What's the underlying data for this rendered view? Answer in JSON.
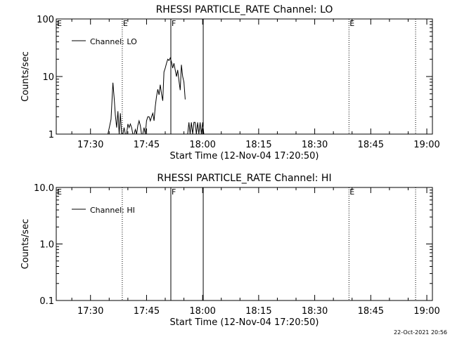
{
  "footer": {
    "timestamp": "22-Oct-2021 20:56"
  },
  "chart_data": [
    {
      "type": "line",
      "title": "RHESSI PARTICLE_RATE Channel: LO",
      "xlabel": "Start Time (12-Nov-04 17:20:50)",
      "ylabel": "Counts/sec",
      "y_scale": "log",
      "xlim": [
        "17:20:50",
        "19:01:30"
      ],
      "ylim": [
        1,
        100
      ],
      "x_ticks": [
        "17:30",
        "17:45",
        "18:00",
        "18:15",
        "18:30",
        "18:45",
        "19:00"
      ],
      "y_ticks": [
        {
          "label": "1",
          "value": 1
        },
        {
          "label": "10",
          "value": 10
        },
        {
          "label": "100",
          "value": 100
        }
      ],
      "legend": {
        "entries": [
          "Channel: LO"
        ],
        "position": "top-left"
      },
      "markers": [
        {
          "time": "17:38:30",
          "style": "dotted",
          "label": "E"
        },
        {
          "time": "17:51:30",
          "style": "solid",
          "label": "F"
        },
        {
          "time": "18:00:10",
          "style": "solid",
          "label": ""
        },
        {
          "time": "18:39:10",
          "style": "dotted",
          "label": "E"
        },
        {
          "time": "18:57:00",
          "style": "dotted",
          "label": ""
        }
      ],
      "edge_labels": [
        {
          "label": "E",
          "position": "top-left"
        }
      ],
      "series": [
        {
          "x": [
            "17:34:40",
            "17:35:30",
            "17:36:00",
            "17:36:20",
            "17:36:40",
            "17:37:00",
            "17:37:20",
            "17:37:40",
            "17:38:00",
            "17:38:20",
            "17:38:40",
            "17:39:00",
            "17:39:20",
            "17:39:40",
            "17:40:00",
            "17:40:20",
            "17:40:40",
            "17:41:00",
            "17:41:20",
            "17:41:40",
            "17:42:00",
            "17:42:20",
            "17:42:40",
            "17:43:00",
            "17:43:20",
            "17:43:40",
            "17:44:00",
            "17:44:20",
            "17:44:40",
            "17:45:00",
            "17:45:20",
            "17:45:40",
            "17:46:00",
            "17:46:20",
            "17:46:40",
            "17:47:00",
            "17:47:20",
            "17:47:40",
            "17:48:00",
            "17:48:20",
            "17:48:40",
            "17:49:00",
            "17:49:20",
            "17:49:40",
            "17:50:00",
            "17:50:20",
            "17:50:40",
            "17:51:00",
            "17:51:20",
            "17:51:40",
            "17:52:00",
            "17:52:20",
            "17:52:40",
            "17:53:00",
            "17:53:20",
            "17:53:40",
            "17:54:00",
            "17:54:20",
            "17:54:40",
            "17:55:00",
            "17:55:20"
          ],
          "y": [
            1,
            1.8,
            7.8,
            4.2,
            2.1,
            1.3,
            2.5,
            1,
            2.3,
            1,
            1,
            1.3,
            1,
            1,
            1.5,
            1.3,
            1.5,
            1.3,
            1,
            1,
            1.2,
            1,
            1.4,
            1.7,
            1.4,
            1,
            1,
            1.3,
            1,
            1.7,
            2,
            2,
            1.7,
            2,
            2.3,
            1.7,
            3,
            4.5,
            6,
            4.8,
            7.2,
            5,
            3.8,
            12,
            14,
            17,
            20,
            19,
            21,
            18,
            14,
            17,
            13,
            10,
            13,
            8.5,
            5.8,
            16,
            10,
            8,
            4
          ]
        },
        {
          "x": [
            "17:55:40",
            "17:56:00",
            "17:56:20",
            "17:56:40",
            "17:57:00",
            "17:57:20",
            "17:57:40",
            "17:58:00",
            "17:58:20",
            "17:58:40",
            "17:59:00",
            "17:59:20",
            "17:59:40",
            "18:00:00",
            "18:00:20",
            "18:00:40"
          ],
          "y": [
            1,
            1,
            1.6,
            1,
            1.6,
            1,
            1.6,
            1.6,
            1,
            1.6,
            1,
            1.6,
            1,
            1.6,
            1,
            1
          ]
        }
      ]
    },
    {
      "type": "line",
      "title": "RHESSI PARTICLE_RATE Channel: HI",
      "xlabel": "Start Time (12-Nov-04 17:20:50)",
      "ylabel": "Counts/sec",
      "y_scale": "log",
      "xlim": [
        "17:20:50",
        "19:01:30"
      ],
      "ylim": [
        0.1,
        10
      ],
      "x_ticks": [
        "17:30",
        "17:45",
        "18:00",
        "18:15",
        "18:30",
        "18:45",
        "19:00"
      ],
      "y_ticks": [
        {
          "label": "0.1",
          "value": 0.1
        },
        {
          "label": "1.0",
          "value": 1
        },
        {
          "label": "10.0",
          "value": 10
        }
      ],
      "legend": {
        "entries": [
          "Channel: HI"
        ],
        "position": "top-left"
      },
      "markers": [
        {
          "time": "17:38:30",
          "style": "dotted",
          "label": ""
        },
        {
          "time": "17:51:30",
          "style": "solid",
          "label": "F"
        },
        {
          "time": "18:00:10",
          "style": "solid",
          "label": ""
        },
        {
          "time": "18:39:10",
          "style": "dotted",
          "label": "E"
        },
        {
          "time": "18:57:00",
          "style": "dotted",
          "label": ""
        }
      ],
      "edge_labels": [
        {
          "label": "E",
          "position": "top-left"
        }
      ],
      "series": []
    }
  ]
}
